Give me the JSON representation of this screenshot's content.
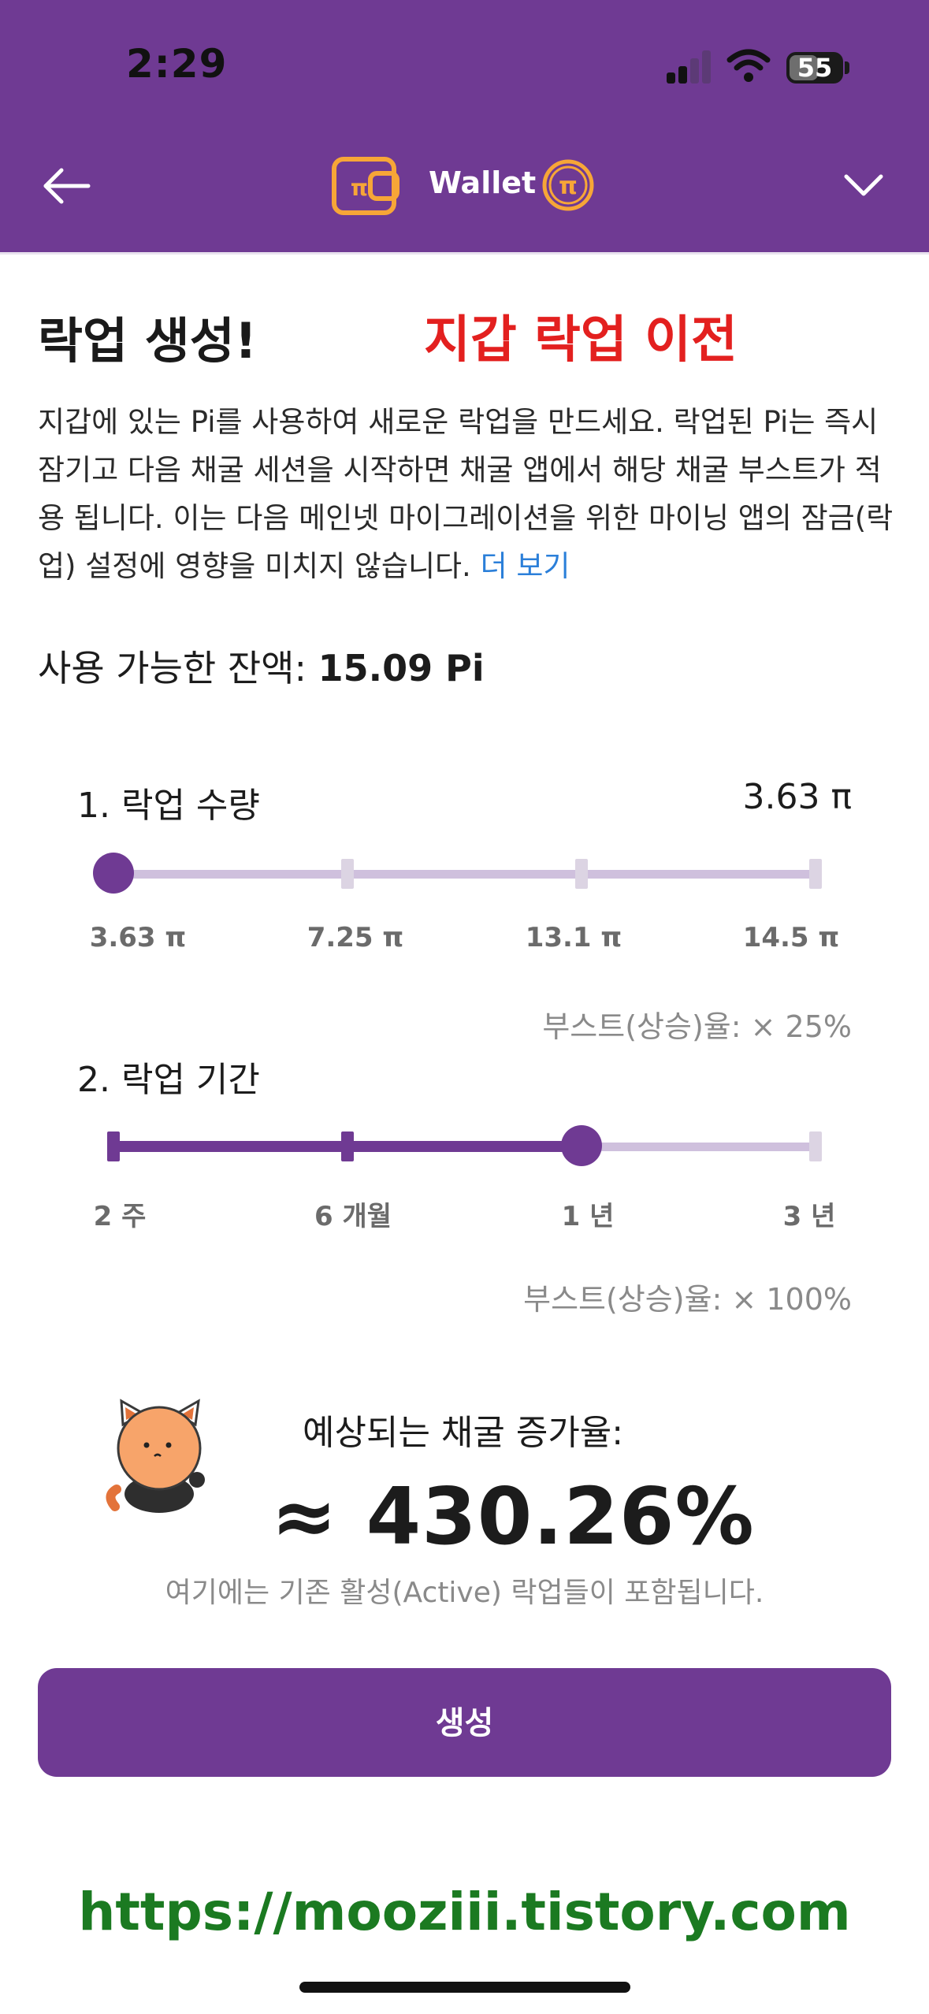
{
  "status_bar": {
    "time": "2:29",
    "battery": "55"
  },
  "header": {
    "title": "Wallet"
  },
  "content": {
    "page_title": "락업 생성!",
    "overlay_label": "지갑 락업 이전",
    "description": "지갑에 있는 Pi를 사용하여 새로운 락업을 만드세요. 락업된 Pi는 즉시 잠기고 다음 채굴 세션을 시작하면 채굴 앱에서 해당 채굴 부스트가 적용 됩니다. 이는 다음 메인넷 마이그레이션을 위한 마이닝 앱의 잠금(락업) 설정에 영향을 미치지 않습니다. ",
    "more_link": "더 보기",
    "balance_label": "사용 가능한 잔액:",
    "balance_value": "15.09 Pi"
  },
  "lockup_amount": {
    "label": "1. 락업 수량",
    "value": "3.63 π",
    "ticks": [
      "3.63 π",
      "7.25 π",
      "13.1 π",
      "14.5 π"
    ],
    "selected_index": 0,
    "boost": "부스트(상승)율: × 25%"
  },
  "lockup_period": {
    "label": "2. 락업 기간",
    "ticks": [
      "2 주",
      "6 개월",
      "1 년",
      "3 년"
    ],
    "selected_index": 2,
    "boost": "부스트(상승)율: × 100%"
  },
  "estimate": {
    "label": "예상되는 채굴 증가율:",
    "value": "≈ 430.26%",
    "note": "여기에는 기존 활성(Active) 락업들이 포함됩니다."
  },
  "create_button": "생성",
  "watermark": "https://mooziii.tistory.com",
  "colors": {
    "brand": "#6f3a93",
    "track": "#cfc0dd",
    "overlay": "#e3201f",
    "link": "#2b7fd9",
    "watermark": "#1b7a21",
    "coin": "#f7a637"
  }
}
